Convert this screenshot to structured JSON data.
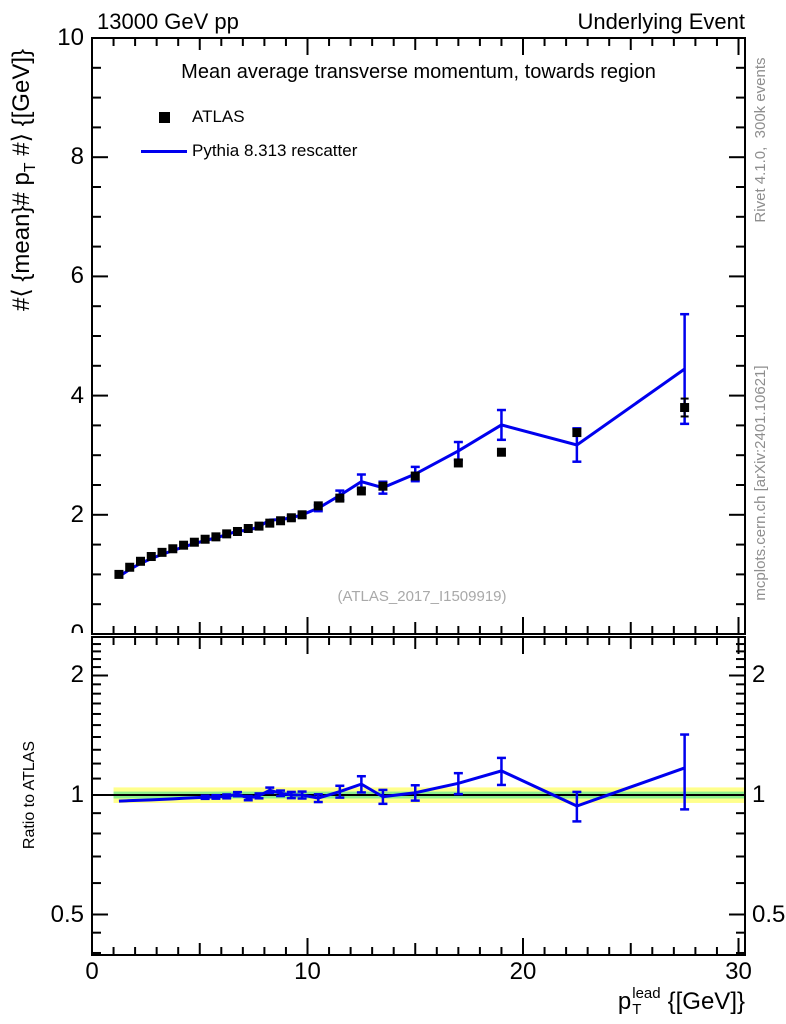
{
  "header": {
    "left": "13000 GeV pp",
    "right": "Underlying Event"
  },
  "chart_data": {
    "type": "line",
    "title": "Mean average transverse momentum, towards region",
    "watermark": "(ATLAS_2017_I1509919)",
    "credits": [
      "Rivet 4.1.0,  300k events",
      "mcplots.cern.ch [arXiv:2401.10621]"
    ],
    "ylabel": {
      "pre": "#⟨ {mean}# p",
      "sub": "T",
      "post": " #⟩ {[GeV]}"
    },
    "xlabel": {
      "base": "p",
      "sup": "lead",
      "sub": "T",
      "unit": "{[GeV]}"
    },
    "ratio_ylabel": "Ratio to ATLAS",
    "colors": {
      "atlas": "#000000",
      "pythia": "#0000ee",
      "band_yellow": "#ffff8c",
      "band_green": "#8cf08c",
      "credit_gray": "#8e8e8e",
      "watermark_gray": "#a9a9a9"
    },
    "x": [
      1.25,
      1.75,
      2.25,
      2.75,
      3.25,
      3.75,
      4.25,
      4.75,
      5.25,
      5.75,
      6.25,
      6.75,
      7.25,
      7.75,
      8.25,
      8.75,
      9.25,
      9.75,
      10.5,
      11.5,
      12.5,
      13.5,
      15,
      17,
      19,
      22.5,
      27.5
    ],
    "series": [
      {
        "name": "ATLAS",
        "type": "scatter",
        "marker": "filled-square",
        "values": [
          1.0,
          1.12,
          1.22,
          1.3,
          1.37,
          1.43,
          1.49,
          1.54,
          1.59,
          1.63,
          1.68,
          1.72,
          1.77,
          1.81,
          1.86,
          1.9,
          1.95,
          2.0,
          2.15,
          2.28,
          2.4,
          2.48,
          2.65,
          2.87,
          3.05,
          3.38,
          3.8
        ],
        "errors": [
          0.01,
          0.01,
          0.01,
          0.01,
          0.01,
          0.01,
          0.01,
          0.01,
          0.01,
          0.01,
          0.01,
          0.01,
          0.01,
          0.01,
          0.01,
          0.01,
          0.015,
          0.015,
          0.02,
          0.02,
          0.025,
          0.03,
          0.03,
          0.04,
          0.05,
          0.06,
          0.15
        ]
      },
      {
        "name": "Pythia 8.313 rescatter",
        "type": "line",
        "values": [
          0.965,
          1.084,
          1.183,
          1.264,
          1.336,
          1.399,
          1.462,
          1.515,
          1.569,
          1.613,
          1.667,
          1.729,
          1.738,
          1.801,
          1.912,
          1.919,
          1.95,
          2.0,
          2.111,
          2.326,
          2.556,
          2.455,
          2.684,
          3.071,
          3.508,
          3.171,
          4.446
        ],
        "errors": [
          0.01,
          0.01,
          0.01,
          0.01,
          0.01,
          0.01,
          0.012,
          0.012,
          0.015,
          0.015,
          0.018,
          0.02,
          0.02,
          0.025,
          0.03,
          0.03,
          0.035,
          0.04,
          0.05,
          0.08,
          0.12,
          0.1,
          0.12,
          0.15,
          0.25,
          0.28,
          0.92
        ]
      }
    ],
    "ratio": {
      "reference": "ATLAS",
      "values": [
        0.965,
        0.968,
        0.97,
        0.972,
        0.975,
        0.978,
        0.981,
        0.984,
        0.987,
        0.989,
        0.992,
        1.005,
        0.982,
        0.995,
        1.028,
        1.01,
        1.0,
        1.0,
        0.982,
        1.02,
        1.065,
        0.99,
        1.013,
        1.07,
        1.15,
        0.938,
        1.17
      ],
      "errors": [
        0.006,
        0.006,
        0.006,
        0.006,
        0.006,
        0.007,
        0.008,
        0.008,
        0.009,
        0.01,
        0.011,
        0.012,
        0.012,
        0.014,
        0.016,
        0.016,
        0.018,
        0.02,
        0.022,
        0.035,
        0.05,
        0.04,
        0.045,
        0.065,
        0.09,
        0.08,
        0.25
      ],
      "bands": {
        "yellow": [
          0.955,
          1.045
        ],
        "green": [
          0.98,
          1.02
        ]
      }
    },
    "axes": {
      "x": {
        "min": 0,
        "max": 30.3,
        "ticks": [
          0,
          10,
          20,
          30
        ]
      },
      "main_y": {
        "min": 0,
        "max": 10,
        "ticks": [
          10,
          8,
          6,
          4,
          2,
          0
        ]
      },
      "ratio_y": {
        "scale": "log",
        "min": 0.4,
        "max": 2.5,
        "ticks": [
          "2",
          "1",
          "0.5"
        ]
      }
    },
    "legend_position": "top-left",
    "grid": false
  }
}
